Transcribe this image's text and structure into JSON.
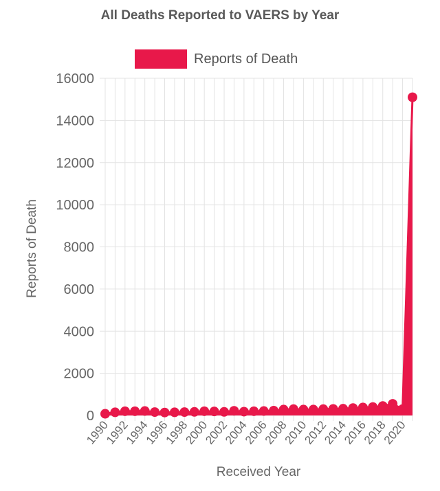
{
  "chart_data": {
    "type": "line",
    "title": "All Deaths Reported to VAERS by Year",
    "xlabel": "Received Year",
    "ylabel": "Reports of Death",
    "ylim": [
      0,
      16000
    ],
    "yticks": [
      0,
      2000,
      4000,
      6000,
      8000,
      10000,
      12000,
      14000,
      16000
    ],
    "xticks": [
      "1990",
      "1992",
      "1994",
      "1996",
      "1998",
      "2000",
      "2002",
      "2004",
      "2006",
      "2008",
      "2010",
      "2012",
      "2014",
      "2016",
      "2018",
      "2020"
    ],
    "grid": true,
    "legend_position": "top-center",
    "color": "#e8184a",
    "x": [
      1990,
      1991,
      1992,
      1993,
      1994,
      1995,
      1996,
      1997,
      1998,
      1999,
      2000,
      2001,
      2002,
      2003,
      2004,
      2005,
      2006,
      2007,
      2008,
      2009,
      2010,
      2011,
      2012,
      2013,
      2014,
      2015,
      2016,
      2017,
      2018,
      2019,
      2020,
      2021
    ],
    "series": [
      {
        "name": "Reports of Death",
        "values": [
          80,
          150,
          200,
          200,
          210,
          160,
          140,
          150,
          160,
          170,
          200,
          190,
          170,
          220,
          180,
          200,
          210,
          230,
          280,
          300,
          280,
          280,
          300,
          310,
          320,
          350,
          380,
          400,
          450,
          550,
          300,
          15100
        ]
      }
    ]
  }
}
